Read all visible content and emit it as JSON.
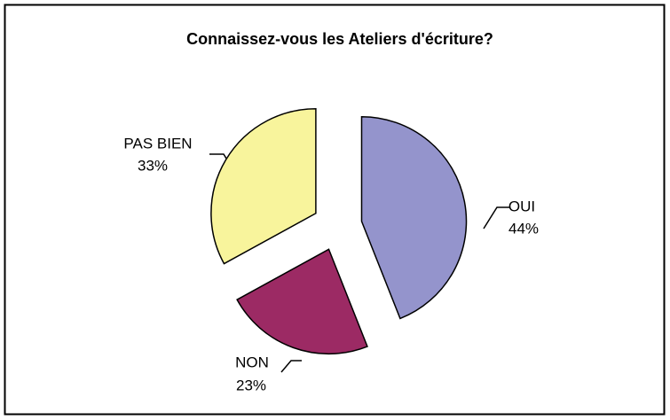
{
  "chart_data": {
    "type": "pie",
    "title": "Connaissez-vous les Ateliers d'écriture?",
    "categories": [
      "OUI",
      "NON",
      "PAS BIEN"
    ],
    "values": [
      44,
      23,
      33
    ],
    "value_labels": [
      "44%",
      "23%",
      "33%"
    ],
    "colors": [
      "#9494cc",
      "#9c2a64",
      "#f8f49c"
    ]
  }
}
